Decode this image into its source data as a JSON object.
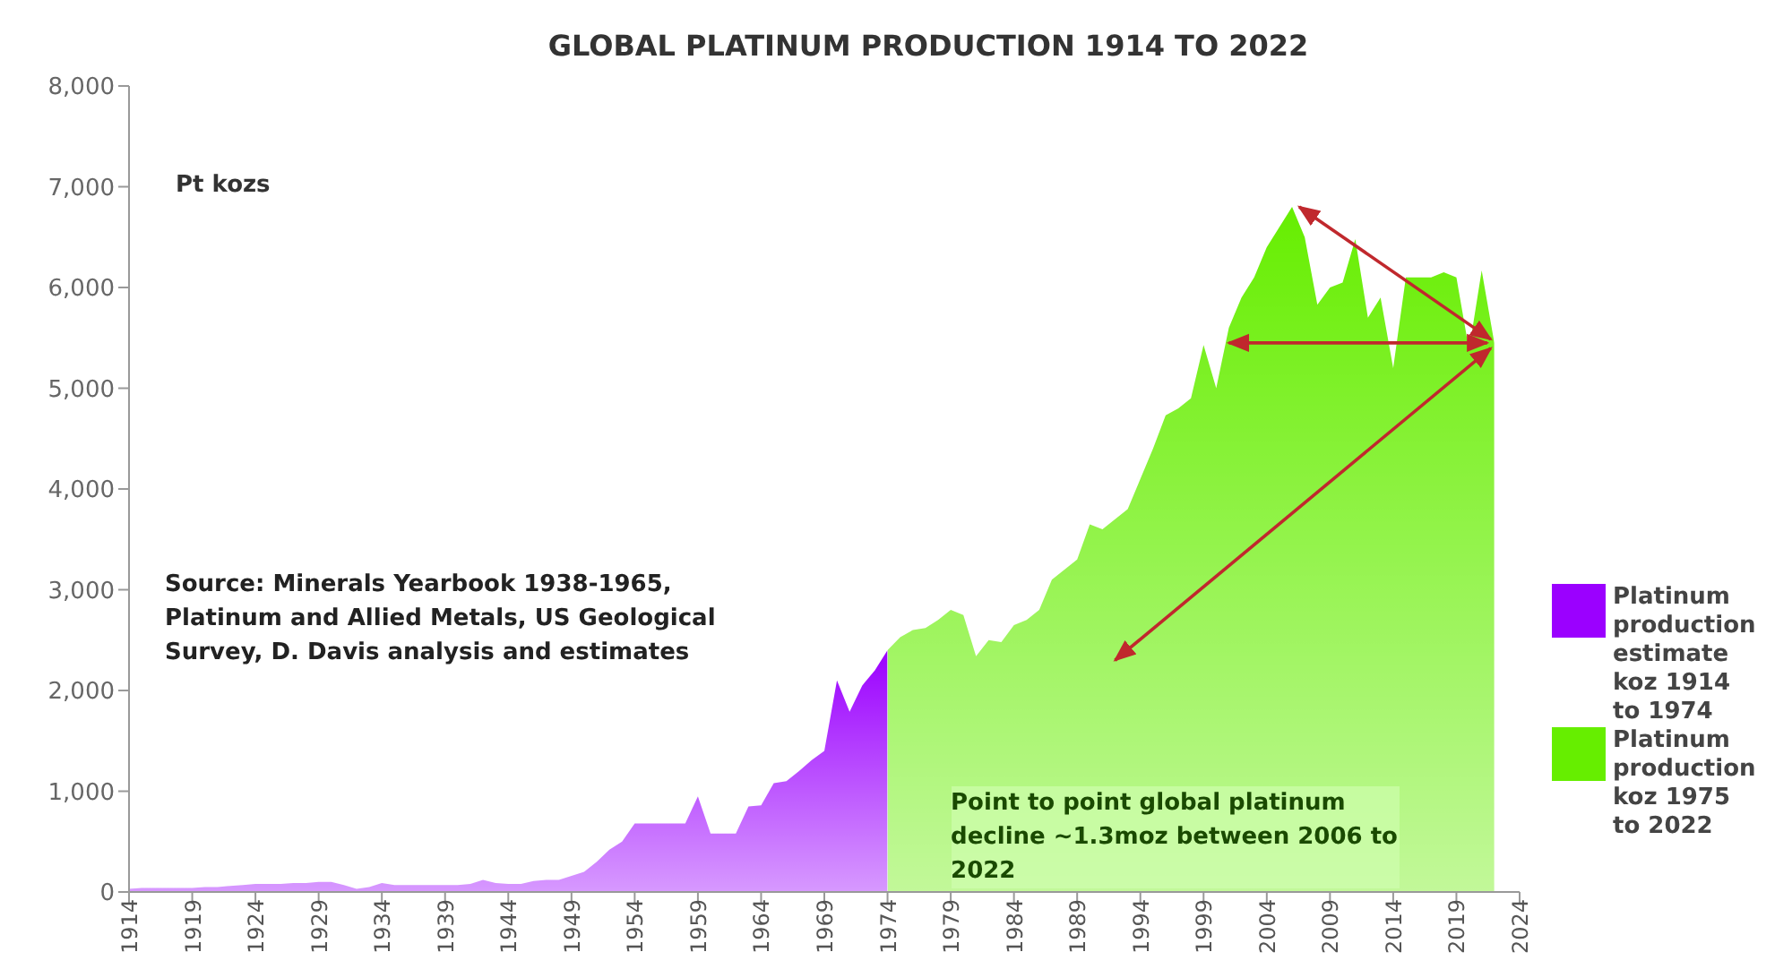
{
  "chart_data": {
    "type": "area",
    "title": "GLOBAL PLATINUM PRODUCTION 1914 TO 2022",
    "ylabel": "Pt kozs",
    "annotations": [
      "Source: Minerals Yearbook 1938-1965, Platinum and Allied Metals, US Geological Survey, D. Davis analysis and estimates",
      "Point to point global platinum decline ~1.3moz between 2006 to 2022"
    ],
    "series": [
      {
        "name": "Platinum production estimate koz 1914 to 1974",
        "color": "#9b00ff",
        "x": [
          1914,
          1915,
          1916,
          1917,
          1918,
          1919,
          1920,
          1921,
          1922,
          1923,
          1924,
          1925,
          1926,
          1927,
          1928,
          1929,
          1930,
          1931,
          1932,
          1933,
          1934,
          1935,
          1936,
          1937,
          1938,
          1939,
          1940,
          1941,
          1942,
          1943,
          1944,
          1945,
          1946,
          1947,
          1948,
          1949,
          1950,
          1951,
          1952,
          1953,
          1954,
          1955,
          1956,
          1957,
          1958,
          1959,
          1960,
          1961,
          1962,
          1963,
          1964,
          1965,
          1966,
          1967,
          1968,
          1969,
          1970,
          1971,
          1972,
          1973,
          1974
        ],
        "values": [
          30,
          40,
          40,
          40,
          40,
          40,
          50,
          50,
          60,
          70,
          80,
          80,
          80,
          90,
          90,
          100,
          100,
          70,
          30,
          50,
          90,
          70,
          70,
          70,
          70,
          70,
          70,
          80,
          120,
          90,
          80,
          80,
          110,
          120,
          120,
          160,
          200,
          300,
          420,
          500,
          680,
          680,
          680,
          680,
          680,
          950,
          580,
          580,
          580,
          850,
          860,
          1080,
          1100,
          1200,
          1310,
          1400,
          2100,
          1790,
          2050,
          2200,
          2400
        ]
      },
      {
        "name": "Platinum production koz 1975 to 2022",
        "color": "#66ee00",
        "x": [
          1974,
          1975,
          1976,
          1977,
          1978,
          1979,
          1980,
          1981,
          1982,
          1983,
          1984,
          1985,
          1986,
          1987,
          1988,
          1989,
          1990,
          1991,
          1992,
          1993,
          1994,
          1995,
          1996,
          1997,
          1998,
          1999,
          2000,
          2001,
          2002,
          2003,
          2004,
          2005,
          2006,
          2007,
          2008,
          2009,
          2010,
          2011,
          2012,
          2013,
          2014,
          2015,
          2016,
          2017,
          2018,
          2019,
          2020,
          2021,
          2022
        ],
        "values": [
          2400,
          2530,
          2600,
          2620,
          2700,
          2800,
          2750,
          2340,
          2500,
          2480,
          2650,
          2700,
          2800,
          3100,
          3200,
          3300,
          3650,
          3600,
          3700,
          3800,
          4100,
          4400,
          4730,
          4800,
          4900,
          5430,
          5000,
          5600,
          5900,
          6100,
          6400,
          6600,
          6800,
          6500,
          5830,
          6000,
          6050,
          6480,
          5700,
          5900,
          5200,
          6100,
          6100,
          6100,
          6150,
          6100,
          5380,
          6170,
          5450
        ]
      }
    ],
    "xlim": [
      1914,
      2024
    ],
    "xticks": [
      1914,
      1919,
      1924,
      1929,
      1934,
      1939,
      1944,
      1949,
      1954,
      1959,
      1964,
      1969,
      1974,
      1979,
      1984,
      1989,
      1994,
      1999,
      2004,
      2009,
      2014,
      2019,
      2024
    ],
    "ylim": [
      0,
      8000
    ],
    "yticks": [
      {
        "value": 0,
        "label": "0"
      },
      {
        "value": 1000,
        "label": "1,000"
      },
      {
        "value": 2000,
        "label": "2,000"
      },
      {
        "value": 3000,
        "label": "3,000"
      },
      {
        "value": 4000,
        "label": "4,000"
      },
      {
        "value": 5000,
        "label": "5,000"
      },
      {
        "value": 6000,
        "label": "6,000"
      },
      {
        "value": 7000,
        "label": "7,000"
      },
      {
        "value": 8000,
        "label": "8,000"
      }
    ],
    "grid": false,
    "legend": "right"
  }
}
